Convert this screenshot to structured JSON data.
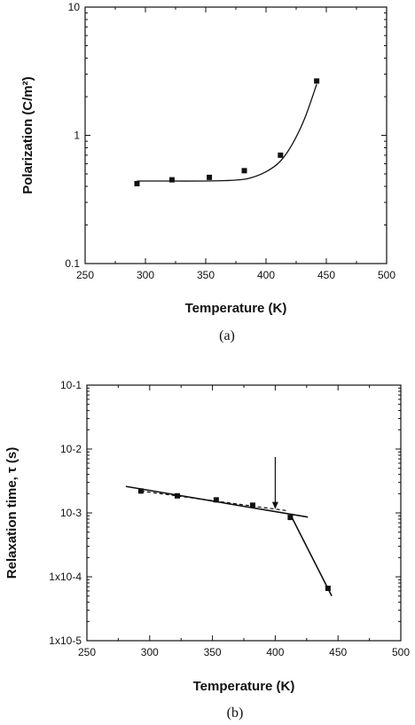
{
  "chart_data": [
    {
      "type": "scatter",
      "panel_label": "(a)",
      "xlabel": "Temperature (K)",
      "ylabel": "Polarization (C/m²)",
      "xlim": [
        250,
        500
      ],
      "ylim": [
        0.1,
        10
      ],
      "yscale": "log",
      "xticks": [
        "250",
        "300",
        "350",
        "400",
        "450",
        "500"
      ],
      "yticks": [
        "0.1",
        "1",
        "10"
      ],
      "grid": false,
      "series": [
        {
          "x": [
            293,
            322,
            353,
            382,
            412,
            442
          ],
          "y": [
            0.42,
            0.45,
            0.47,
            0.53,
            0.7,
            2.65
          ]
        }
      ],
      "fit_curve": {
        "x": [
          293,
          320,
          350,
          370,
          385,
          400,
          412,
          422,
          432,
          442
        ],
        "y": [
          0.44,
          0.44,
          0.44,
          0.445,
          0.46,
          0.52,
          0.63,
          0.86,
          1.35,
          2.5
        ]
      }
    },
    {
      "type": "scatter",
      "panel_label": "(b)",
      "xlabel": "Temperature (K)",
      "ylabel": "Relaxation time, τ (s)",
      "xlim": [
        250,
        500
      ],
      "ylim": [
        1e-05,
        0.1
      ],
      "yscale": "log",
      "xticks": [
        "250",
        "300",
        "350",
        "400",
        "450",
        "500"
      ],
      "yticks": [
        "1x10-5",
        "1x10-4",
        "10-3",
        "10-2",
        "10-1"
      ],
      "grid": false,
      "series": [
        {
          "x": [
            293,
            322,
            353,
            382,
            412,
            442
          ],
          "y": [
            0.0022,
            0.00185,
            0.0016,
            0.00132,
            0.00085,
            6.6e-05
          ]
        }
      ],
      "fit_lines": [
        {
          "style": "solid",
          "x": [
            281,
            426
          ],
          "y": [
            0.0026,
            0.00086
          ]
        },
        {
          "style": "solid",
          "x": [
            412,
            445
          ],
          "y": [
            0.00095,
            5e-05
          ]
        },
        {
          "style": "dashed",
          "x": [
            293,
            410
          ],
          "y": [
            0.0022,
            0.00108
          ]
        }
      ],
      "arrow": {
        "x": 400,
        "y_from": 0.0075,
        "y_to": 0.00115
      }
    }
  ]
}
